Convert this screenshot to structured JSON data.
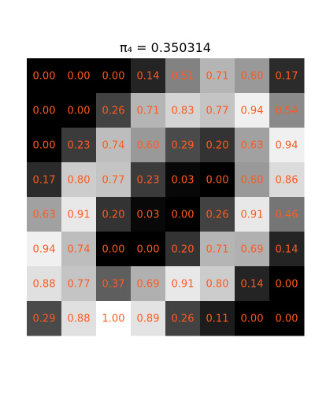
{
  "chart_data": {
    "type": "heatmap",
    "title": "π₄ = 0.350314",
    "xlabel": "",
    "ylabel": "",
    "colormap": "gray",
    "vmin": 0.0,
    "vmax": 1.0,
    "annotation_color": "#ff5a1f",
    "grid": false,
    "axes_visible": false,
    "rows": 8,
    "cols": 8,
    "values": [
      [
        0.0,
        0.0,
        0.0,
        0.14,
        0.51,
        0.71,
        0.6,
        0.17
      ],
      [
        0.0,
        0.0,
        0.26,
        0.71,
        0.83,
        0.77,
        0.94,
        0.54
      ],
      [
        0.0,
        0.23,
        0.74,
        0.6,
        0.29,
        0.2,
        0.63,
        0.94
      ],
      [
        0.17,
        0.8,
        0.77,
        0.23,
        0.03,
        0.0,
        0.6,
        0.86
      ],
      [
        0.63,
        0.91,
        0.2,
        0.03,
        0.0,
        0.26,
        0.91,
        0.46
      ],
      [
        0.94,
        0.74,
        0.0,
        0.0,
        0.2,
        0.71,
        0.69,
        0.14
      ],
      [
        0.88,
        0.77,
        0.37,
        0.69,
        0.91,
        0.8,
        0.14,
        0.0
      ],
      [
        0.29,
        0.88,
        1.0,
        0.89,
        0.26,
        0.11,
        0.0,
        0.0
      ]
    ]
  }
}
